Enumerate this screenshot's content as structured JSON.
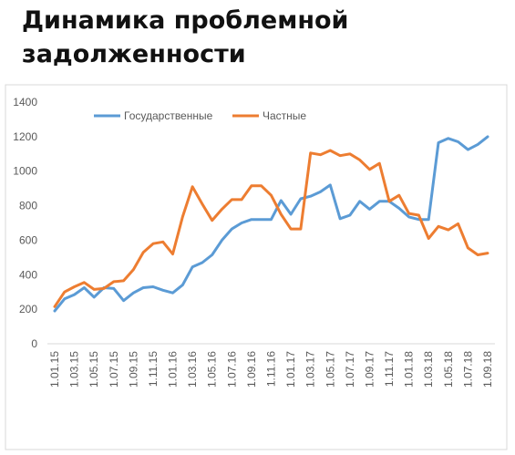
{
  "chart_data": {
    "type": "line",
    "title": "Динамика проблемной задолженности",
    "xlabel": "",
    "ylabel": "",
    "ylim": [
      0,
      1400
    ],
    "yticks": [
      0,
      200,
      400,
      600,
      800,
      1000,
      1200,
      1400
    ],
    "grid": false,
    "legend": "top",
    "x": [
      "1.01.15",
      "1.02.15",
      "1.03.15",
      "1.04.15",
      "1.05.15",
      "1.06.15",
      "1.07.15",
      "1.08.15",
      "1.09.15",
      "1.10.15",
      "1.11.15",
      "1.12.15",
      "1.01.16",
      "1.02.16",
      "1.03.16",
      "1.04.16",
      "1.05.16",
      "1.06.16",
      "1.07.16",
      "1.08.16",
      "1.09.16",
      "1.10.16",
      "1.11.16",
      "1.12.16",
      "1.01.17",
      "1.02.17",
      "1.03.17",
      "1.04.17",
      "1.05.17",
      "1.06.17",
      "1.07.17",
      "1.08.17",
      "1.09.17",
      "1.10.17",
      "1.11.17",
      "1.12.17",
      "1.01.18",
      "1.02.18",
      "1.03.18",
      "1.04.18",
      "1.05.18",
      "1.06.18",
      "1.07.18",
      "1.08.18",
      "1.09.18"
    ],
    "xticks_shown": [
      "1.01.15",
      "1.03.15",
      "1.05.15",
      "1.07.15",
      "1.09.15",
      "1.11.15",
      "1.01.16",
      "1.03.16",
      "1.05.16",
      "1.07.16",
      "1.09.16",
      "1.11.16",
      "1.01.17",
      "1.03.17",
      "1.05.17",
      "1.07.17",
      "1.09.17",
      "1.11.17",
      "1.01.18",
      "1.03.18",
      "1.05.18",
      "1.07.18",
      "1.09.18"
    ],
    "series": [
      {
        "name": "Государственные",
        "color": "#5B9BD5",
        "values": [
          190,
          260,
          285,
          325,
          270,
          325,
          320,
          250,
          295,
          325,
          330,
          310,
          295,
          340,
          445,
          470,
          515,
          600,
          665,
          700,
          720,
          720,
          720,
          830,
          750,
          840,
          855,
          880,
          920,
          725,
          745,
          825,
          780,
          825,
          825,
          785,
          735,
          720,
          720,
          1165,
          1190,
          1170,
          1125,
          1155,
          1200
        ]
      },
      {
        "name": "Частные",
        "color": "#ED7D31",
        "values": [
          215,
          300,
          330,
          355,
          315,
          320,
          360,
          365,
          430,
          530,
          580,
          590,
          520,
          735,
          910,
          810,
          715,
          780,
          835,
          835,
          915,
          915,
          860,
          750,
          665,
          665,
          1105,
          1095,
          1120,
          1090,
          1100,
          1065,
          1010,
          1045,
          825,
          860,
          755,
          745,
          610,
          680,
          660,
          695,
          555,
          515,
          525
        ]
      }
    ]
  }
}
